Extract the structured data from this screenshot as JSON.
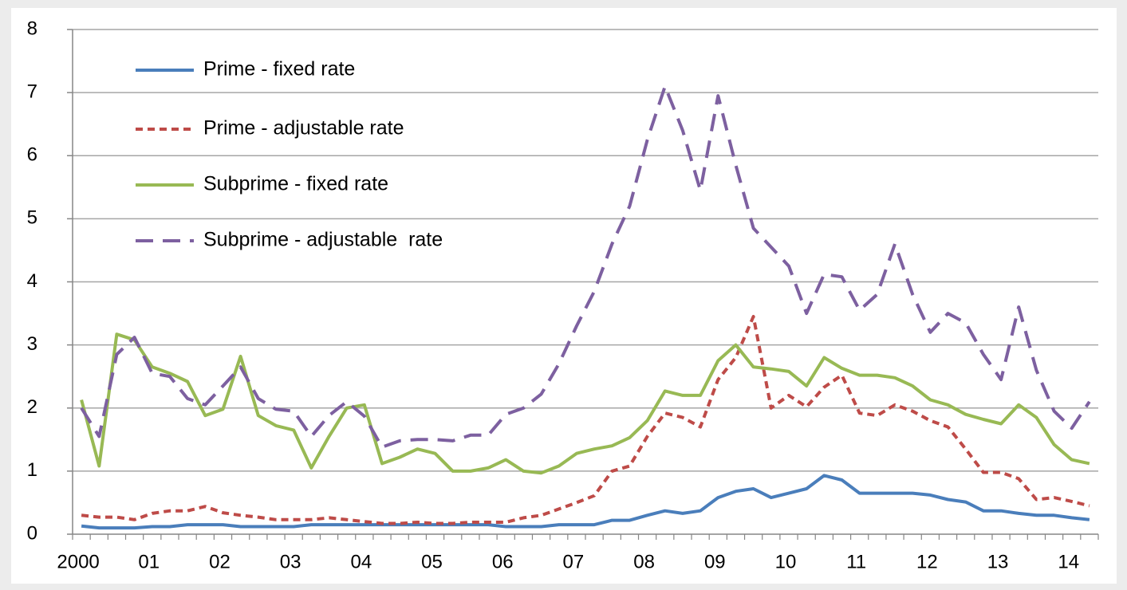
{
  "chart_data": {
    "type": "line",
    "categories": [
      "2000",
      null,
      null,
      null,
      "01",
      null,
      null,
      null,
      "02",
      null,
      null,
      null,
      "03",
      null,
      null,
      null,
      "04",
      null,
      null,
      null,
      "05",
      null,
      null,
      null,
      "06",
      null,
      null,
      null,
      "07",
      null,
      null,
      null,
      "08",
      null,
      null,
      null,
      "09",
      null,
      null,
      null,
      "10",
      null,
      null,
      null,
      "11",
      null,
      null,
      null,
      "12",
      null,
      null,
      null,
      "13",
      null,
      null,
      null,
      "14",
      null
    ],
    "series": [
      {
        "name": "Prime - fixed rate",
        "color": "#4a7ebb",
        "style": "solid",
        "values": [
          0.13,
          0.1,
          0.1,
          0.1,
          0.12,
          0.12,
          0.15,
          0.15,
          0.15,
          0.12,
          0.12,
          0.12,
          0.12,
          0.15,
          0.15,
          0.15,
          0.15,
          0.15,
          0.15,
          0.15,
          0.15,
          0.15,
          0.15,
          0.15,
          0.12,
          0.12,
          0.12,
          0.15,
          0.15,
          0.15,
          0.22,
          0.22,
          0.3,
          0.37,
          0.33,
          0.37,
          0.58,
          0.68,
          0.72,
          0.58,
          0.65,
          0.72,
          0.93,
          0.86,
          0.65,
          0.65,
          0.65,
          0.65,
          0.62,
          0.55,
          0.51,
          0.37,
          0.37,
          0.33,
          0.3,
          0.3,
          0.26,
          0.23
        ]
      },
      {
        "name": "Prime - adjustable rate",
        "color": "#be4b48",
        "style": "dash",
        "values": [
          0.3,
          0.27,
          0.27,
          0.23,
          0.33,
          0.37,
          0.37,
          0.44,
          0.34,
          0.3,
          0.27,
          0.23,
          0.23,
          0.23,
          0.26,
          0.23,
          0.2,
          0.17,
          0.17,
          0.19,
          0.17,
          0.17,
          0.19,
          0.19,
          0.19,
          0.26,
          0.3,
          0.4,
          0.5,
          0.61,
          1.0,
          1.08,
          1.55,
          1.92,
          1.85,
          1.7,
          2.45,
          2.8,
          3.45,
          2.0,
          2.2,
          2.02,
          2.33,
          2.52,
          1.92,
          1.88,
          2.05,
          1.95,
          1.8,
          1.7,
          1.35,
          0.98,
          0.98,
          0.88,
          0.55,
          0.58,
          0.52,
          0.45
        ]
      },
      {
        "name": "Subprime - fixed rate",
        "color": "#98b954",
        "style": "solid",
        "values": [
          2.13,
          1.08,
          3.17,
          3.08,
          2.65,
          2.55,
          2.42,
          1.88,
          1.98,
          2.82,
          1.88,
          1.72,
          1.65,
          1.05,
          1.55,
          2.0,
          2.05,
          1.12,
          1.22,
          1.35,
          1.28,
          1.0,
          1.0,
          1.05,
          1.18,
          1.0,
          0.97,
          1.08,
          1.28,
          1.35,
          1.4,
          1.53,
          1.8,
          2.27,
          2.2,
          2.2,
          2.75,
          3.0,
          2.65,
          2.62,
          2.58,
          2.35,
          2.8,
          2.63,
          2.52,
          2.52,
          2.48,
          2.35,
          2.13,
          2.05,
          1.9,
          1.82,
          1.75,
          2.05,
          1.85,
          1.42,
          1.18,
          1.12
        ]
      },
      {
        "name": "Subprime - adjustable  rate",
        "color": "#7d60a0",
        "style": "longdash",
        "values": [
          2.0,
          1.55,
          2.85,
          3.12,
          2.55,
          2.5,
          2.15,
          2.05,
          2.35,
          2.65,
          2.15,
          1.98,
          1.95,
          1.55,
          1.88,
          2.1,
          1.87,
          1.38,
          1.48,
          1.5,
          1.5,
          1.48,
          1.57,
          1.57,
          1.9,
          2.0,
          2.22,
          2.7,
          3.3,
          3.85,
          4.6,
          5.2,
          6.25,
          7.1,
          6.4,
          5.45,
          6.95,
          5.85,
          4.85,
          4.55,
          4.25,
          3.5,
          4.12,
          4.08,
          3.55,
          3.8,
          4.6,
          3.8,
          3.2,
          3.5,
          3.35,
          2.85,
          2.45,
          3.6,
          2.6,
          1.95,
          1.68,
          2.1
        ]
      }
    ],
    "ylim": [
      0,
      8
    ],
    "yticks": [
      0,
      1,
      2,
      3,
      4,
      5,
      6,
      7,
      8
    ],
    "grid": true,
    "legend": "upper left"
  }
}
